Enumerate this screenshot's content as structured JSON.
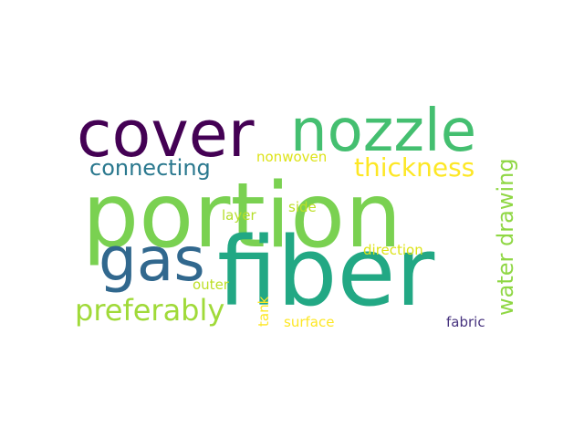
{
  "wordcloud": {
    "words": [
      {
        "text": "portion",
        "color": "#7ad151"
      },
      {
        "text": "fiber",
        "color": "#22a884"
      },
      {
        "text": "cover",
        "color": "#440154"
      },
      {
        "text": "nozzle",
        "color": "#44bf70"
      },
      {
        "text": "gas",
        "color": "#31688e"
      },
      {
        "text": "preferably",
        "color": "#a0da39"
      },
      {
        "text": "thickness",
        "color": "#fde725"
      },
      {
        "text": "connecting",
        "color": "#2a788e"
      },
      {
        "text": "water drawing",
        "color": "#8fd744"
      },
      {
        "text": "nonwoven",
        "color": "#dde318"
      },
      {
        "text": "layer",
        "color": "#b5de2b"
      },
      {
        "text": "side",
        "color": "#bddf26"
      },
      {
        "text": "direction",
        "color": "#dde318"
      },
      {
        "text": "outer",
        "color": "#bddf26"
      },
      {
        "text": "tank",
        "color": "#fde725"
      },
      {
        "text": "surface",
        "color": "#fde725"
      },
      {
        "text": "fabric",
        "color": "#46327e"
      }
    ]
  }
}
